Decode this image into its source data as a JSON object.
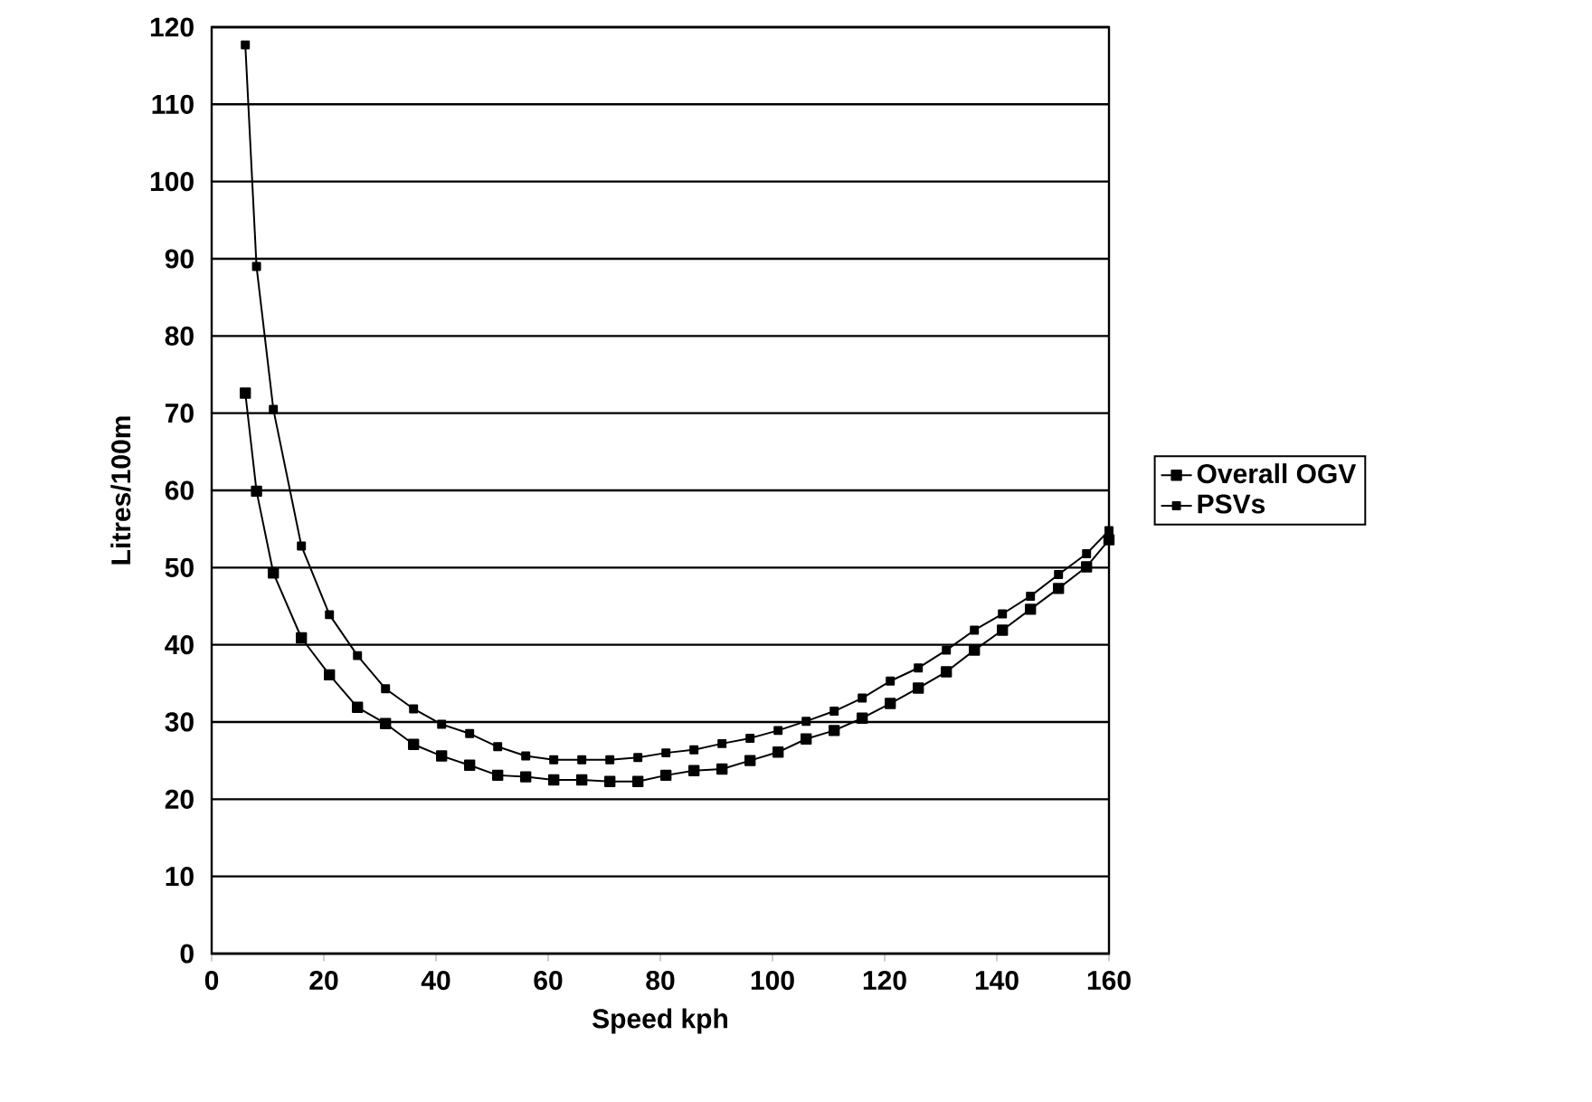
{
  "chart_data": {
    "type": "line",
    "xlabel": "Speed kph",
    "ylabel": "Litres/100m",
    "x": [
      6,
      8,
      11,
      16,
      21,
      26,
      31,
      36,
      41,
      46,
      51,
      56,
      61,
      66,
      71,
      76,
      81,
      86,
      91,
      96,
      101,
      106,
      111,
      116,
      121,
      126,
      131,
      136,
      141,
      146,
      151,
      156,
      160
    ],
    "series": [
      {
        "name": "Overall OGV",
        "color": "#000000",
        "values": [
          72.6,
          59.9,
          49.3,
          40.9,
          36.1,
          31.9,
          29.8,
          27.1,
          25.6,
          24.4,
          23.1,
          22.9,
          22.5,
          22.5,
          22.3,
          22.3,
          23.1,
          23.7,
          23.9,
          25.0,
          26.1,
          27.8,
          28.9,
          30.5,
          32.4,
          34.4,
          36.5,
          39.3,
          41.9,
          44.6,
          47.3,
          50.1,
          53.6
        ]
      },
      {
        "name": "PSVs",
        "color": "#000000",
        "values": [
          117.7,
          89.0,
          70.5,
          52.8,
          43.9,
          38.6,
          34.3,
          31.7,
          29.7,
          28.5,
          26.8,
          25.6,
          25.1,
          25.1,
          25.1,
          25.4,
          26.0,
          26.4,
          27.2,
          27.9,
          28.9,
          30.1,
          31.4,
          33.1,
          35.3,
          37.0,
          39.3,
          41.9,
          44.0,
          46.3,
          49.1,
          51.8,
          54.8
        ]
      }
    ],
    "xlim": [
      0,
      160
    ],
    "ylim": [
      0,
      120
    ],
    "xticks": [
      0,
      20,
      40,
      60,
      80,
      100,
      120,
      140,
      160
    ],
    "yticks": [
      0,
      10,
      20,
      30,
      40,
      50,
      60,
      70,
      80,
      90,
      100,
      110,
      120
    ],
    "grid": "y",
    "legend": "right",
    "marker": "square",
    "line_style": "solid"
  }
}
